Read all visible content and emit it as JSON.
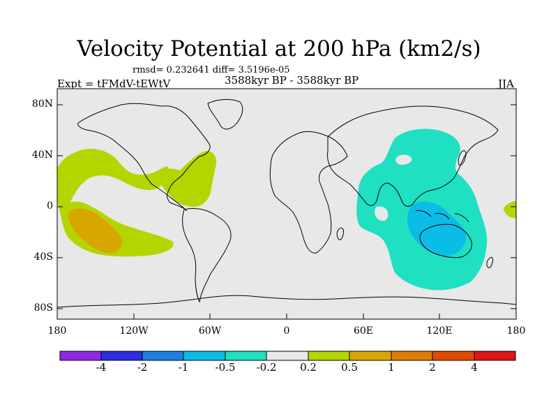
{
  "title": "Velocity Potential at 200 hPa (km2/s)",
  "stats_line": "rmsd= 0.232641  diff= 3.5196e-05",
  "experiment_label": "Expt = tFMdV-tEWtV",
  "period_label": "3588kyr BP - 3588kyr BP",
  "season_label": "JJA",
  "map": {
    "projection": "cylindrical equidistant",
    "lon_range": [
      -180,
      180
    ],
    "lat_range": [
      -90,
      90
    ],
    "lat_ticks": [
      "80N",
      "40N",
      "0",
      "40S",
      "80S"
    ],
    "lon_ticks": [
      "180",
      "120W",
      "60W",
      "0",
      "60E",
      "120E",
      "180"
    ],
    "fields": [
      {
        "region": "eastern Pacific",
        "range": "0.2 to 0.5",
        "color": "#b4d600"
      },
      {
        "region": "southeastern Pacific core",
        "range": "0.5 to 1",
        "color": "#d9a600"
      },
      {
        "region": "Tropical Atlantic / Caribbean",
        "range": "0.2 to 0.5",
        "color": "#b4d600"
      },
      {
        "region": "Asia / Indian Ocean / Western Pacific",
        "range": "-0.5 to -0.2",
        "color": "#1fe0c1"
      },
      {
        "region": "Maritime Continent / Australia",
        "range": "-1 to -0.5",
        "color": "#0bbce6"
      },
      {
        "region": "central Pacific (east of date line)",
        "range": "0.2 to 0.5",
        "color": "#b4d600"
      }
    ]
  },
  "colorbar": {
    "labels": [
      "-4",
      "-2",
      "-1",
      "-0.5",
      "-0.2",
      "0.2",
      "0.5",
      "1",
      "2",
      "4"
    ],
    "colors": [
      "#8e28e6",
      "#2d2de0",
      "#1f7fe0",
      "#0bbce6",
      "#1fe0c1",
      "#e8e8e8",
      "#b4d600",
      "#d9a600",
      "#df7d00",
      "#e04c00",
      "#e01414"
    ]
  }
}
